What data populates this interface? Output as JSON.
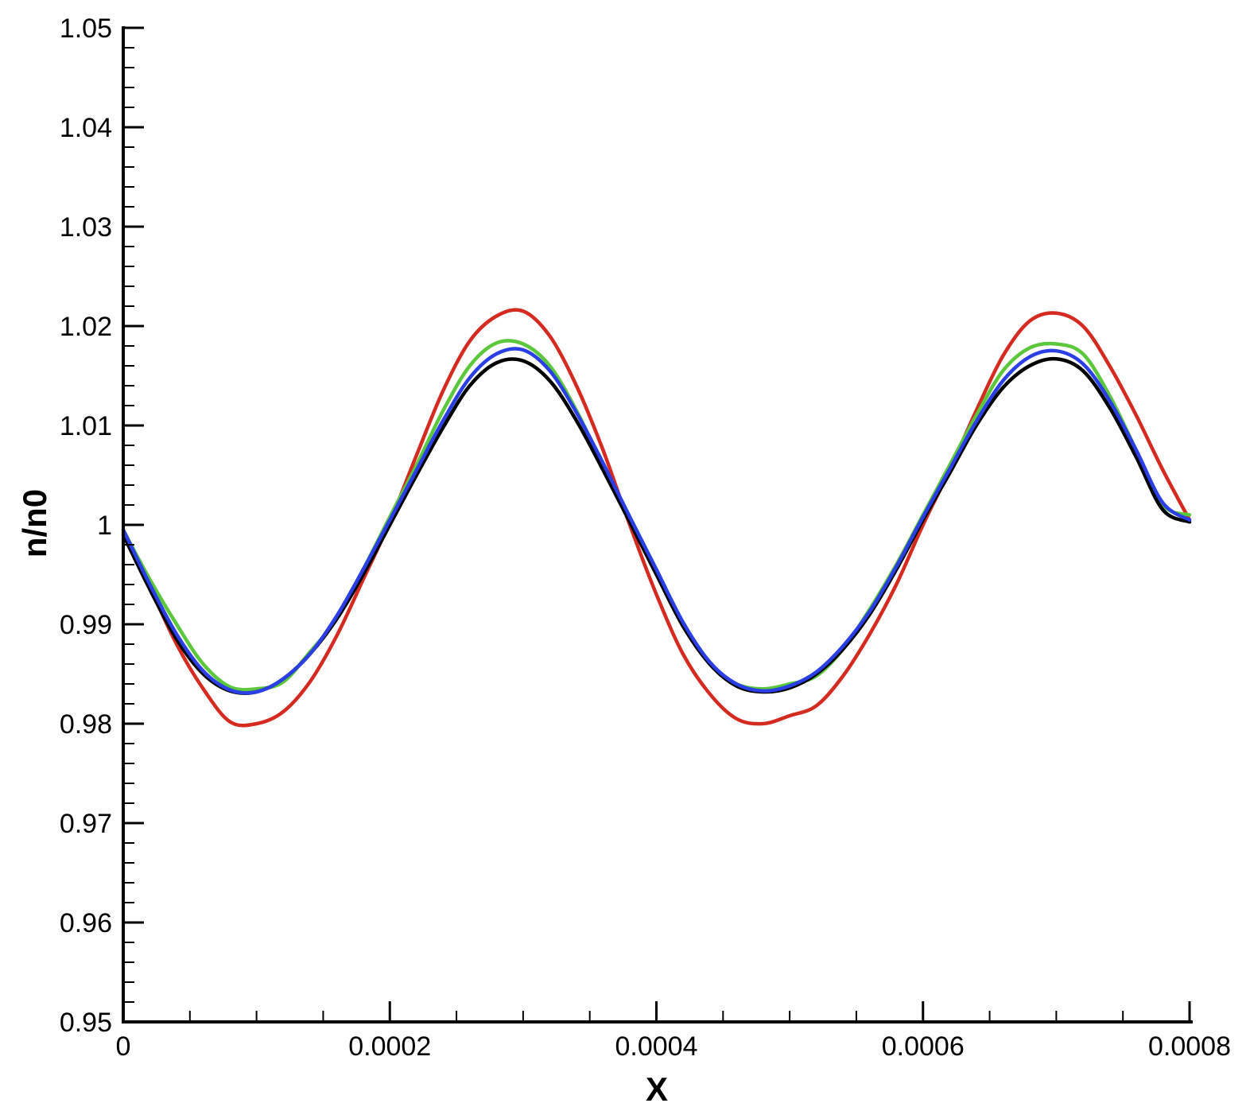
{
  "chart_data": {
    "type": "line",
    "title": "",
    "xlabel": "X",
    "ylabel": "n/n0",
    "xlim": [
      0,
      0.0008
    ],
    "ylim": [
      0.95,
      1.05
    ],
    "grid": false,
    "x_ticks": [
      {
        "value": 0,
        "label": "0"
      },
      {
        "value": 0.0002,
        "label": "0.0002"
      },
      {
        "value": 0.0004,
        "label": "0.0004"
      },
      {
        "value": 0.0006,
        "label": "0.0006"
      },
      {
        "value": 0.0008,
        "label": "0.0008"
      }
    ],
    "y_ticks": [
      {
        "value": 0.95,
        "label": "0.95"
      },
      {
        "value": 0.96,
        "label": "0.96"
      },
      {
        "value": 0.97,
        "label": "0.97"
      },
      {
        "value": 0.98,
        "label": "0.98"
      },
      {
        "value": 0.99,
        "label": "0.99"
      },
      {
        "value": 1.0,
        "label": "1"
      },
      {
        "value": 1.01,
        "label": "1.01"
      },
      {
        "value": 1.02,
        "label": "1.02"
      },
      {
        "value": 1.03,
        "label": "1.03"
      },
      {
        "value": 1.04,
        "label": "1.04"
      },
      {
        "value": 1.05,
        "label": "1.05"
      }
    ],
    "x": [
      0,
      2e-05,
      4e-05,
      6e-05,
      8e-05,
      0.0001,
      0.00012,
      0.00014,
      0.00016,
      0.00018,
      0.0002,
      0.00022,
      0.00024,
      0.00026,
      0.00028,
      0.0003,
      0.00032,
      0.00034,
      0.00036,
      0.00038,
      0.0004,
      0.00042,
      0.00044,
      0.00046,
      0.00048,
      0.0005,
      0.00052,
      0.00054,
      0.00056,
      0.00058,
      0.0006,
      0.00062,
      0.00064,
      0.00066,
      0.00068,
      0.0007,
      0.00072,
      0.00074,
      0.00076,
      0.00078,
      0.0008
    ],
    "series": [
      {
        "color": "#d42a20",
        "values": [
          0.9992,
          0.9937,
          0.988,
          0.9835,
          0.9802,
          0.98,
          0.9812,
          0.9842,
          0.9888,
          0.9945,
          1.0003,
          1.007,
          1.0135,
          1.0185,
          1.021,
          1.0215,
          1.019,
          1.014,
          1.0075,
          1.0,
          0.993,
          0.987,
          0.983,
          0.9805,
          0.98,
          0.9808,
          0.9818,
          0.9848,
          0.989,
          0.994,
          1.0,
          1.0055,
          1.0115,
          1.017,
          1.0205,
          1.0213,
          1.02,
          1.016,
          1.011,
          1.0055,
          1.0005
        ]
      },
      {
        "color": "#5ac83a",
        "values": [
          0.9995,
          0.9945,
          0.99,
          0.986,
          0.9837,
          0.9835,
          0.9842,
          0.9872,
          0.9905,
          0.9955,
          1.0008,
          1.006,
          1.0115,
          1.016,
          1.0183,
          1.0182,
          1.016,
          1.0115,
          1.006,
          1.0008,
          0.9955,
          0.99,
          0.986,
          0.984,
          0.9835,
          0.984,
          0.9848,
          0.9875,
          0.9915,
          0.996,
          1.001,
          1.006,
          1.011,
          1.0155,
          1.0178,
          1.0182,
          1.0172,
          1.013,
          1.0075,
          1.002,
          1.001
        ]
      },
      {
        "color": "#000000",
        "values": [
          0.999,
          0.9935,
          0.9885,
          0.985,
          0.9833,
          0.9832,
          0.9845,
          0.987,
          0.9905,
          0.995,
          1.0,
          1.005,
          1.0098,
          1.014,
          1.0163,
          1.0165,
          1.0145,
          1.0105,
          1.0055,
          1.0003,
          0.995,
          0.9898,
          0.986,
          0.9838,
          0.9832,
          0.9836,
          0.985,
          0.9875,
          0.991,
          0.9955,
          1.0005,
          1.0052,
          1.01,
          1.0138,
          1.016,
          1.0167,
          1.0155,
          1.0118,
          1.0068,
          1.0015,
          1.0003
        ]
      },
      {
        "color": "#2a3fe6",
        "values": [
          0.9995,
          0.994,
          0.989,
          0.9853,
          0.9834,
          0.9832,
          0.9845,
          0.987,
          0.9908,
          0.9955,
          1.0005,
          1.0055,
          1.0105,
          1.0148,
          1.0172,
          1.0176,
          1.0155,
          1.0113,
          1.0062,
          1.0008,
          0.9955,
          0.9902,
          0.9862,
          0.984,
          0.9833,
          0.9838,
          0.9852,
          0.9878,
          0.9913,
          0.9958,
          1.0008,
          1.0056,
          1.0104,
          1.0145,
          1.0169,
          1.0175,
          1.0162,
          1.0125,
          1.0075,
          1.0022,
          1.0005
        ]
      }
    ]
  }
}
